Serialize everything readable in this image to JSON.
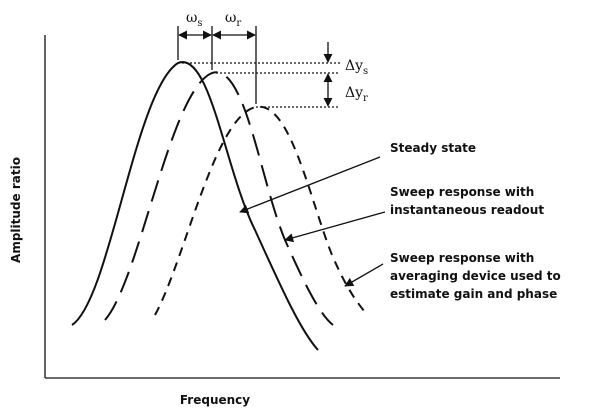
{
  "axes": {
    "x_label": "Frequency",
    "y_label": "Amplitude ratio"
  },
  "markers": [
    {
      "symbol": "ω",
      "subscript": "s"
    },
    {
      "symbol": "ω",
      "subscript": "r"
    },
    {
      "symbol": "Δy",
      "subscript": "s"
    },
    {
      "symbol": "Δy",
      "subscript": "r"
    }
  ],
  "curves": [
    {
      "lines": [
        "Steady state"
      ]
    },
    {
      "lines": [
        "Sweep response with",
        "instantaneous readout"
      ]
    },
    {
      "lines": [
        "Sweep response with",
        "averaging device used to",
        "estimate gain and phase"
      ]
    }
  ]
}
